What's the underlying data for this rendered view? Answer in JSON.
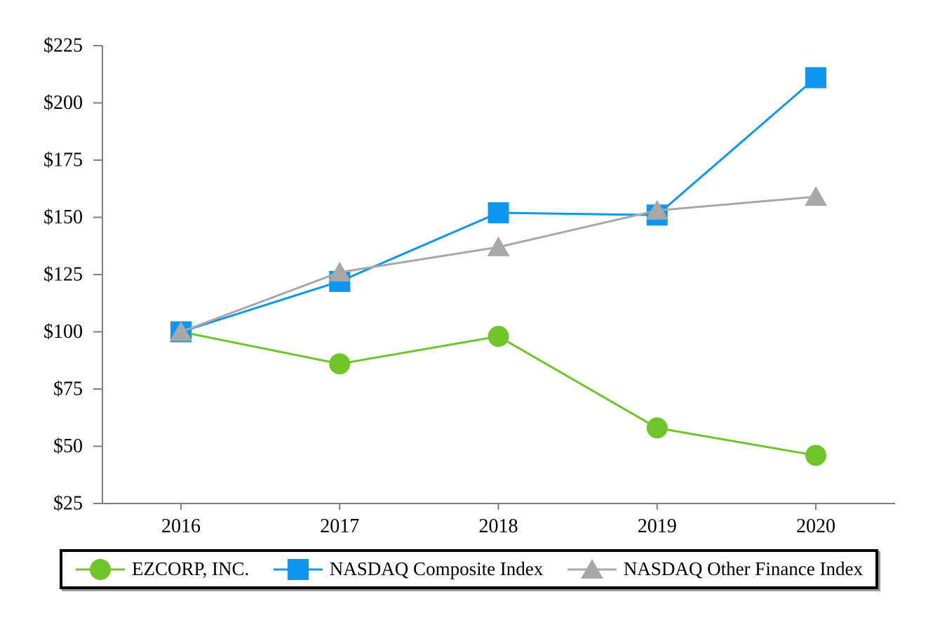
{
  "figure": {
    "background": "#ffffff"
  },
  "chart_data": {
    "type": "line",
    "title": "",
    "xlabel": "",
    "ylabel": "",
    "x": [
      "2016",
      "2017",
      "2018",
      "2019",
      "2020"
    ],
    "ylim": [
      25,
      225
    ],
    "grid": false,
    "axis_color": "#7f7f7f",
    "text_color": "#000000",
    "legend_position": "bottom-boxed",
    "y_ticks": [
      {
        "label": "$225",
        "value": 225
      },
      {
        "label": "$200",
        "value": 200
      },
      {
        "label": "$175",
        "value": 175
      },
      {
        "label": "$150",
        "value": 150
      },
      {
        "label": "$125",
        "value": 125
      },
      {
        "label": "$100",
        "value": 100
      },
      {
        "label": "$75",
        "value": 75
      },
      {
        "label": "$50",
        "value": 50
      },
      {
        "label": "$25",
        "value": 25
      }
    ],
    "series": [
      {
        "id": "ezcorp",
        "name": "EZCORP, INC.",
        "marker": "circle",
        "color": "#6fc52a",
        "values": [
          100,
          86,
          98,
          58,
          46
        ]
      },
      {
        "id": "nasdaq-composite",
        "name": "NASDAQ Composite Index",
        "marker": "square",
        "color": "#0f97f0",
        "values": [
          100,
          122,
          152,
          151,
          211
        ]
      },
      {
        "id": "nasdaq-other-finance",
        "name": "NASDAQ Other Finance Index",
        "marker": "triangle",
        "color": "#a8a8a8",
        "values": [
          100,
          126,
          137,
          153,
          159
        ]
      }
    ]
  },
  "legend": {
    "border_color": "#000000"
  }
}
